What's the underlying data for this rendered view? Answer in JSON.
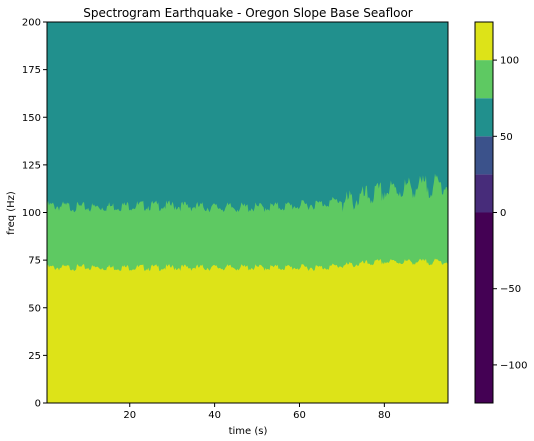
{
  "chart_data": {
    "type": "heatmap",
    "title": "Spectrogram Earthquake - Oregon Slope Base Seafloor",
    "xlabel": "time (s)",
    "ylabel": "freq (Hz)",
    "xlim": [
      0.5,
      95
    ],
    "ylim": [
      0,
      200
    ],
    "x_ticks": [
      20,
      40,
      60,
      80
    ],
    "y_ticks": [
      0,
      25,
      50,
      75,
      100,
      125,
      150,
      175,
      200
    ],
    "grid": false,
    "colorbar": {
      "range": [
        -125,
        125
      ],
      "ticks": [
        -100,
        -50,
        0,
        50,
        100
      ],
      "levels": [
        {
          "from": -125,
          "to": 25,
          "color": "#440154"
        },
        {
          "from": 25,
          "to": 0,
          "color": "#440154"
        }
      ]
    },
    "bands": [
      {
        "from": -125,
        "to": 0,
        "color": "#440154"
      },
      {
        "from": 0,
        "to": 25,
        "color": "#472c7a"
      },
      {
        "from": 25,
        "to": 50,
        "color": "#3b528b"
      },
      {
        "from": 50,
        "to": 75,
        "color": "#21908d"
      },
      {
        "from": 75,
        "to": 100,
        "color": "#5ec962"
      },
      {
        "from": 100,
        "to": 125,
        "color": "#dde318"
      }
    ],
    "regions": [
      {
        "name": "level 100 to 125",
        "color": "#dde318",
        "upper_boundary": {
          "time": [
            0.5,
            10,
            20,
            30,
            40,
            50,
            60,
            65,
            70,
            75,
            80,
            85,
            90,
            95
          ],
          "freq": [
            72,
            72,
            72,
            72,
            72,
            72,
            72,
            72,
            73,
            74,
            75,
            75,
            75,
            75
          ]
        }
      },
      {
        "name": "level 75 to 100",
        "color": "#5ec962",
        "upper_boundary": {
          "time": [
            0.5,
            10,
            20,
            30,
            40,
            50,
            60,
            65,
            70,
            75,
            80,
            85,
            90,
            95
          ],
          "freq": [
            105,
            104,
            105,
            105,
            104,
            104,
            105,
            106,
            108,
            111,
            114,
            116,
            117,
            118
          ]
        }
      },
      {
        "name": "level 50 to 75",
        "color": "#21908d",
        "upper_boundary": {
          "time": [
            0.5,
            95
          ],
          "freq": [
            200,
            200
          ]
        }
      }
    ]
  }
}
